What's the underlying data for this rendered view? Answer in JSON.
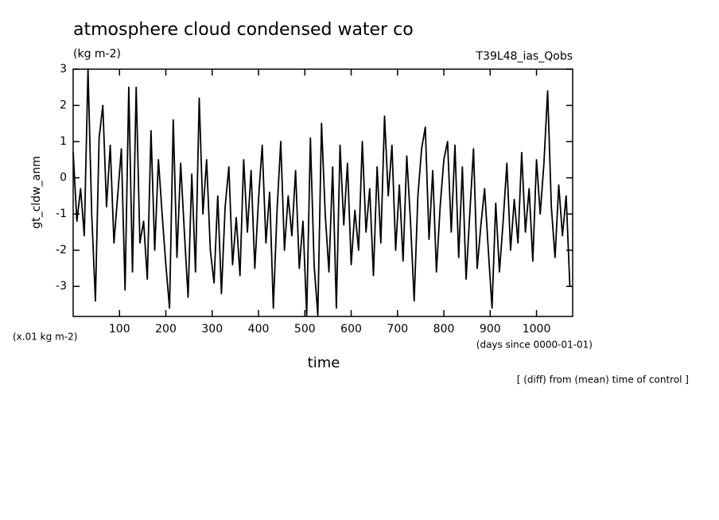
{
  "chart_data": {
    "type": "line",
    "title": "atmosphere cloud condensed water co",
    "subtitle": "(kg m-2)",
    "run_label": "T39L48_ias_Qobs",
    "y_label": "gt_cldw_anm",
    "y_unit": "(x.01 kg m-2)",
    "x_unit": "(days since 0000-01-01)",
    "x_label": "time",
    "footnote": "[ (diff) from (mean) time of control ]",
    "xlim": [
      0,
      1078
    ],
    "ylim": [
      -3.83,
      3
    ],
    "xticks": [
      100,
      200,
      300,
      400,
      500,
      600,
      700,
      800,
      900,
      1000
    ],
    "yticks": [
      3,
      2,
      1,
      0,
      -1,
      -2,
      -3
    ],
    "color": "#000000",
    "x": [
      0,
      8,
      16,
      24,
      32,
      40,
      48,
      56,
      64,
      72,
      80,
      88,
      96,
      104,
      112,
      120,
      128,
      136,
      144,
      152,
      160,
      168,
      176,
      184,
      192,
      200,
      208,
      216,
      224,
      232,
      240,
      248,
      256,
      264,
      272,
      280,
      288,
      296,
      304,
      312,
      320,
      328,
      336,
      344,
      352,
      360,
      368,
      376,
      384,
      392,
      400,
      408,
      416,
      424,
      432,
      440,
      448,
      456,
      464,
      472,
      480,
      488,
      496,
      504,
      512,
      520,
      528,
      536,
      544,
      552,
      560,
      568,
      576,
      584,
      592,
      600,
      608,
      616,
      624,
      632,
      640,
      648,
      656,
      664,
      672,
      680,
      688,
      696,
      704,
      712,
      720,
      728,
      736,
      744,
      752,
      760,
      768,
      776,
      784,
      792,
      800,
      808,
      816,
      824,
      832,
      840,
      848,
      856,
      864,
      872,
      880,
      888,
      896,
      904,
      912,
      920,
      928,
      936,
      944,
      952,
      960,
      968,
      976,
      984,
      992,
      1000,
      1008,
      1016,
      1024,
      1032,
      1040,
      1048,
      1056,
      1064,
      1072
    ],
    "values": [
      0.7,
      -1.2,
      -0.3,
      -1.6,
      3.0,
      -1.0,
      -3.4,
      1.1,
      2.0,
      -0.8,
      0.9,
      -1.8,
      -0.5,
      0.8,
      -3.1,
      2.5,
      -2.6,
      2.5,
      -1.8,
      -1.2,
      -2.8,
      1.3,
      -2.0,
      0.5,
      -1.0,
      -2.4,
      -3.6,
      1.6,
      -2.2,
      0.4,
      -1.5,
      -3.3,
      0.1,
      -2.6,
      2.2,
      -1.0,
      0.5,
      -2.0,
      -2.9,
      -0.5,
      -3.2,
      -0.8,
      0.3,
      -2.4,
      -1.1,
      -2.7,
      0.5,
      -1.5,
      0.2,
      -2.5,
      -0.6,
      0.9,
      -1.8,
      -0.4,
      -3.6,
      -0.9,
      1.0,
      -2.0,
      -0.5,
      -1.6,
      0.2,
      -2.5,
      -1.2,
      -3.8,
      1.1,
      -2.4,
      -3.8,
      1.5,
      -1.0,
      -2.6,
      0.3,
      -3.6,
      0.9,
      -1.3,
      0.4,
      -2.4,
      -0.9,
      -2.0,
      1.0,
      -1.5,
      -0.3,
      -2.7,
      0.3,
      -1.8,
      1.7,
      -0.5,
      0.9,
      -2.0,
      -0.2,
      -2.3,
      0.6,
      -1.2,
      -3.4,
      -0.5,
      0.8,
      1.4,
      -1.7,
      0.2,
      -2.6,
      -0.8,
      0.5,
      1.0,
      -1.5,
      0.9,
      -2.2,
      0.3,
      -2.8,
      -1.0,
      0.8,
      -2.5,
      -1.3,
      -0.3,
      -2.0,
      -3.6,
      -0.7,
      -2.6,
      -1.2,
      0.4,
      -2.0,
      -0.6,
      -1.8,
      0.7,
      -1.5,
      -0.3,
      -2.3,
      0.5,
      -1.0,
      0.4,
      2.4,
      -0.8,
      -2.2,
      -0.2,
      -1.6,
      -0.5,
      -3.0
    ]
  }
}
